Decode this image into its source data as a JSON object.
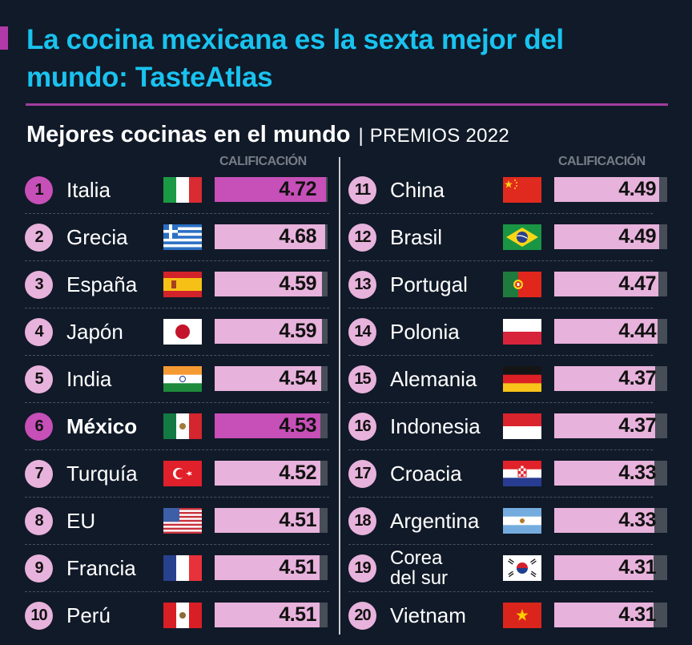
{
  "header": {
    "title": "La cocina mexicana es la sexta mejor del mundo: TasteAtlas",
    "subtitle": "Mejores cocinas en el mundo",
    "separator": "|",
    "subtitle_suffix": "PREMIOS 2022",
    "column_header": "CALIFICACIÓN"
  },
  "colors": {
    "background": "#111a28",
    "title": "#19c3f0",
    "accent": "#b03aa8",
    "bar": "#e7b2dc",
    "bar_highlight": "#c64fb8",
    "bar_track": "#474e58"
  },
  "chart_data": {
    "type": "bar",
    "title": "Mejores cocinas en el mundo | PREMIOS 2022",
    "xlabel": "",
    "ylabel": "CALIFICACIÓN",
    "xlim": [
      0,
      5
    ],
    "highlighted": [
      "Italia",
      "México"
    ],
    "categories": [
      "Italia",
      "Grecia",
      "España",
      "Japón",
      "India",
      "México",
      "Turquía",
      "EU",
      "Francia",
      "Perú",
      "China",
      "Brasil",
      "Portugal",
      "Polonia",
      "Alemania",
      "Indonesia",
      "Croacia",
      "Argentina",
      "Corea del sur",
      "Vietnam"
    ],
    "values": [
      4.72,
      4.68,
      4.59,
      4.59,
      4.54,
      4.53,
      4.52,
      4.51,
      4.51,
      4.51,
      4.49,
      4.49,
      4.47,
      4.44,
      4.37,
      4.37,
      4.33,
      4.33,
      4.31,
      4.31
    ]
  },
  "rows": [
    {
      "rank": "1",
      "name": "Italia",
      "flag": "italy-flag",
      "score": "4.72",
      "hl": true
    },
    {
      "rank": "2",
      "name": "Grecia",
      "flag": "greece-flag",
      "score": "4.68"
    },
    {
      "rank": "3",
      "name": "España",
      "flag": "spain-flag",
      "score": "4.59"
    },
    {
      "rank": "4",
      "name": "Japón",
      "flag": "japan-flag",
      "score": "4.59"
    },
    {
      "rank": "5",
      "name": "India",
      "flag": "india-flag",
      "score": "4.54"
    },
    {
      "rank": "6",
      "name": "México",
      "flag": "mexico-flag",
      "score": "4.53",
      "hl": true,
      "bold": true
    },
    {
      "rank": "7",
      "name": "Turquía",
      "flag": "turkey-flag",
      "score": "4.52"
    },
    {
      "rank": "8",
      "name": "EU",
      "flag": "usa-flag",
      "score": "4.51"
    },
    {
      "rank": "9",
      "name": "Francia",
      "flag": "france-flag",
      "score": "4.51"
    },
    {
      "rank": "10",
      "name": "Perú",
      "flag": "peru-flag",
      "score": "4.51"
    },
    {
      "rank": "11",
      "name": "China",
      "flag": "china-flag",
      "score": "4.49"
    },
    {
      "rank": "12",
      "name": "Brasil",
      "flag": "brazil-flag",
      "score": "4.49"
    },
    {
      "rank": "13",
      "name": "Portugal",
      "flag": "portugal-flag",
      "score": "4.47"
    },
    {
      "rank": "14",
      "name": "Polonia",
      "flag": "poland-flag",
      "score": "4.44"
    },
    {
      "rank": "15",
      "name": "Alemania",
      "flag": "germany-flag",
      "score": "4.37"
    },
    {
      "rank": "16",
      "name": "Indonesia",
      "flag": "indonesia-flag",
      "score": "4.37"
    },
    {
      "rank": "17",
      "name": "Croacia",
      "flag": "croatia-flag",
      "score": "4.33"
    },
    {
      "rank": "18",
      "name": "Argentina",
      "flag": "argentina-flag",
      "score": "4.33"
    },
    {
      "rank": "19",
      "name": "Corea del sur",
      "flag": "south-korea-flag",
      "score": "4.31"
    },
    {
      "rank": "20",
      "name": "Vietnam",
      "flag": "vietnam-flag",
      "score": "4.31"
    }
  ]
}
